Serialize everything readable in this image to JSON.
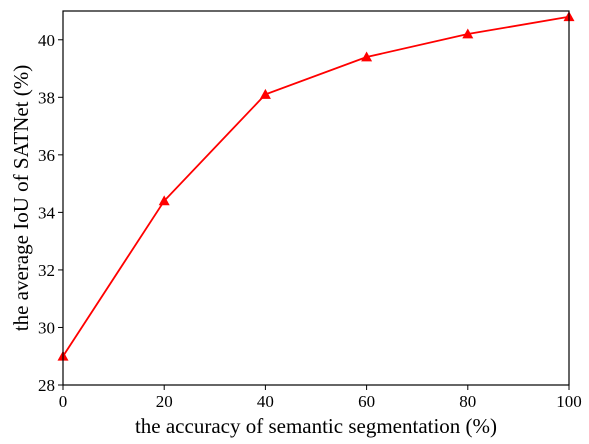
{
  "chart_data": {
    "type": "line",
    "xlabel": "the accuracy of semantic segmentation (%)",
    "ylabel": "the average IoU of SATNet (%)",
    "xlim": [
      0,
      100
    ],
    "ylim": [
      28,
      41
    ],
    "x_ticks": [
      0,
      20,
      40,
      60,
      80,
      100
    ],
    "y_ticks": [
      28,
      30,
      32,
      34,
      36,
      38,
      40
    ],
    "grid": false,
    "series": [
      {
        "color": "#ff0000",
        "marker": "triangle",
        "x": [
          0,
          20,
          40,
          60,
          80,
          100
        ],
        "y": [
          29.0,
          34.4,
          38.1,
          39.4,
          40.2,
          40.8
        ]
      }
    ]
  }
}
